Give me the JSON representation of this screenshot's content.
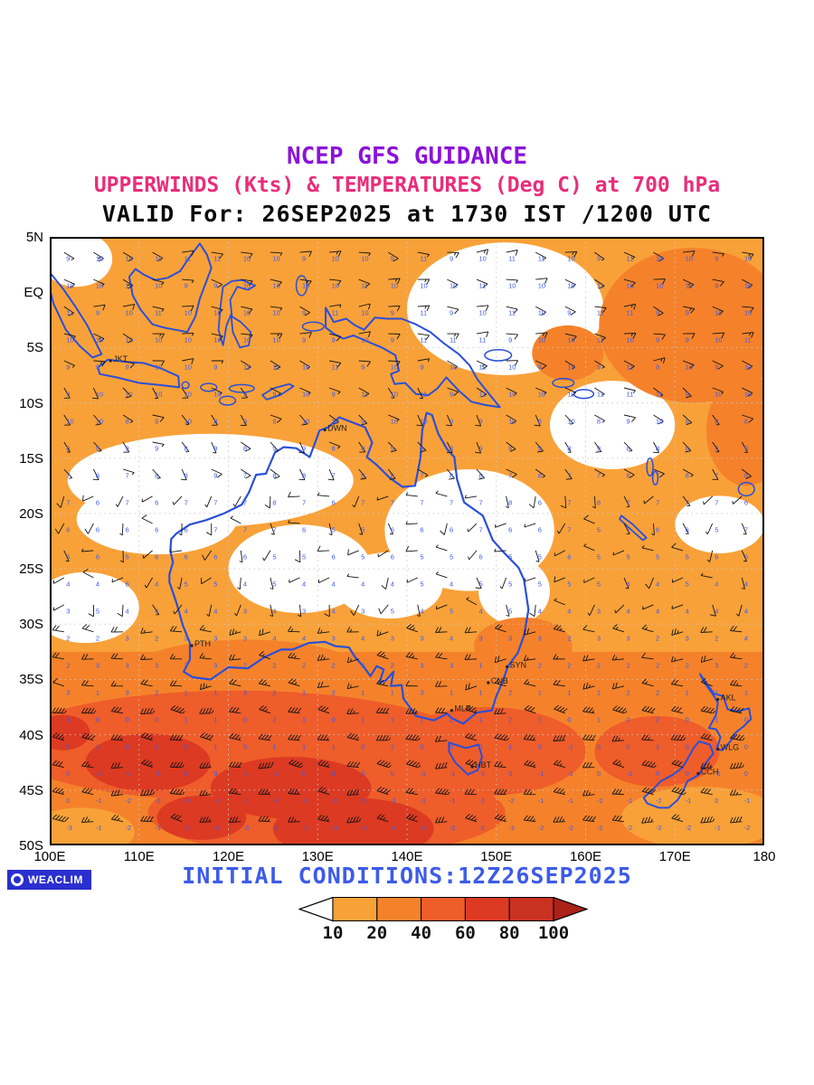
{
  "header": {
    "line1": "NCEP GFS GUIDANCE",
    "line2": "UPPERWINDS (Kts) & TEMPERATURES (Deg C) at 700 hPa",
    "line3": "VALID For: 26SEP2025 at 1730 IST /1200 UTC",
    "line1_color": "#8b12d8",
    "line2_color": "#e82e7a",
    "line3_color": "#0a0a0a"
  },
  "map": {
    "lon_min": 100,
    "lon_max": 180,
    "lat_min": -50,
    "lat_max": 5,
    "x_ticks": [
      {
        "label": "100E",
        "lon": 100
      },
      {
        "label": "110E",
        "lon": 110
      },
      {
        "label": "120E",
        "lon": 120
      },
      {
        "label": "130E",
        "lon": 130
      },
      {
        "label": "140E",
        "lon": 140
      },
      {
        "label": "150E",
        "lon": 150
      },
      {
        "label": "160E",
        "lon": 160
      },
      {
        "label": "170E",
        "lon": 170
      },
      {
        "label": "180",
        "lon": 180
      }
    ],
    "y_ticks": [
      {
        "label": "5N",
        "lat": 5
      },
      {
        "label": "EQ",
        "lat": 0
      },
      {
        "label": "5S",
        "lat": -5
      },
      {
        "label": "10S",
        "lat": -10
      },
      {
        "label": "15S",
        "lat": -15
      },
      {
        "label": "20S",
        "lat": -20
      },
      {
        "label": "25S",
        "lat": -25
      },
      {
        "label": "30S",
        "lat": -30
      },
      {
        "label": "35S",
        "lat": -35
      },
      {
        "label": "40S",
        "lat": -40
      },
      {
        "label": "45S",
        "lat": -45
      },
      {
        "label": "50S",
        "lat": -50
      }
    ],
    "cities": [
      {
        "label": "JKT",
        "lon": 106.8,
        "lat": -6.2
      },
      {
        "label": "DWN",
        "lon": 130.8,
        "lat": -12.45
      },
      {
        "label": "PTH",
        "lon": 115.9,
        "lat": -31.95
      },
      {
        "label": "SYN",
        "lon": 151.2,
        "lat": -33.85
      },
      {
        "label": "CNB",
        "lon": 149.1,
        "lat": -35.3
      },
      {
        "label": "MLB",
        "lon": 145.0,
        "lat": -37.8
      },
      {
        "label": "HBT",
        "lon": 147.3,
        "lat": -42.9
      },
      {
        "label": "AKL",
        "lon": 174.8,
        "lat": -36.8
      },
      {
        "label": "WLG",
        "lon": 174.8,
        "lat": -41.3
      },
      {
        "label": "CCH",
        "lon": 172.6,
        "lat": -43.5
      }
    ]
  },
  "palette": {
    "white": "#ffffff",
    "level1": "#F9A139",
    "level2": "#F5822B",
    "level3": "#EE5D2A",
    "level4": "#DC3A22",
    "level5": "#C93120",
    "bar_arrow_right": "#AB2217",
    "coast": "#2B4FD8",
    "grid_dots": "#C8C8C8",
    "barb": "#141414",
    "value_text": "#3B5AF0",
    "frame": "#000000"
  },
  "field_model": {
    "wind_bands": [
      {
        "lat_from": 5,
        "lat_to": -8,
        "dir": 100,
        "spread": 50,
        "spd_min": 6,
        "spd_max": 14
      },
      {
        "lat_from": -8,
        "lat_to": -18,
        "dir": 130,
        "spread": 60,
        "spd_min": 5,
        "spd_max": 12
      },
      {
        "lat_from": -18,
        "lat_to": -30,
        "dir": 220,
        "spread": 160,
        "spd_min": 3,
        "spd_max": 10
      },
      {
        "lat_from": -30,
        "lat_to": -38,
        "dir": 270,
        "spread": 40,
        "spd_min": 12,
        "spd_max": 24
      },
      {
        "lat_from": -38,
        "lat_to": -51,
        "dir": 277,
        "spread": 28,
        "spd_min": 22,
        "spd_max": 48
      }
    ],
    "temperature": {
      "tropics_value": 10,
      "start_lat": -8,
      "per_deg": 0.3,
      "jitter": 1
    }
  },
  "footer": {
    "initial_conditions": "INITIAL CONDITIONS:12Z26SEP2025",
    "initial_conditions_color": "#3D5BE8",
    "logo_text": "WEACLIM",
    "logo_bg": "#2A2FD0"
  },
  "colorbar": {
    "labels": [
      "10",
      "20",
      "40",
      "60",
      "80",
      "100"
    ],
    "segment_colors": [
      "#F9A139",
      "#F5822B",
      "#EE5D2A",
      "#DC3A22",
      "#C93120"
    ]
  }
}
